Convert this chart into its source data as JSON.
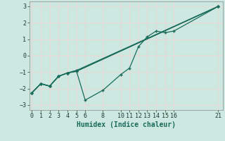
{
  "xlabel": "Humidex (Indice chaleur)",
  "xlim": [
    -0.3,
    21.5
  ],
  "ylim": [
    -3.3,
    3.3
  ],
  "xticks": [
    0,
    1,
    2,
    3,
    4,
    5,
    6,
    8,
    10,
    11,
    12,
    13,
    14,
    15,
    16,
    21
  ],
  "yticks": [
    -3,
    -2,
    -1,
    0,
    1,
    2,
    3
  ],
  "bg_color": "#cce8e0",
  "grid_color": "#e8d8d8",
  "line_color": "#1a6b5a",
  "lines": [
    {
      "x": [
        0,
        1,
        2,
        3,
        4,
        5,
        21
      ],
      "y": [
        -2.25,
        -1.7,
        -1.85,
        -1.25,
        -1.05,
        -0.95,
        3.0
      ]
    },
    {
      "x": [
        0,
        1,
        2,
        3,
        4,
        5,
        21
      ],
      "y": [
        -2.25,
        -1.7,
        -1.85,
        -1.25,
        -1.05,
        -0.95,
        3.0
      ]
    },
    {
      "x": [
        0,
        1,
        2,
        3,
        4,
        5,
        21
      ],
      "y": [
        -2.25,
        -1.7,
        -1.85,
        -1.25,
        -1.05,
        -0.9,
        3.0
      ]
    },
    {
      "x": [
        0,
        1,
        2,
        3,
        4,
        5,
        6,
        8,
        10,
        11,
        12,
        13,
        14,
        15,
        16,
        21
      ],
      "y": [
        -2.25,
        -1.7,
        -1.85,
        -1.25,
        -1.05,
        -0.9,
        -2.7,
        -2.1,
        -1.15,
        -0.75,
        0.55,
        1.15,
        1.5,
        1.4,
        1.5,
        3.0
      ]
    }
  ]
}
